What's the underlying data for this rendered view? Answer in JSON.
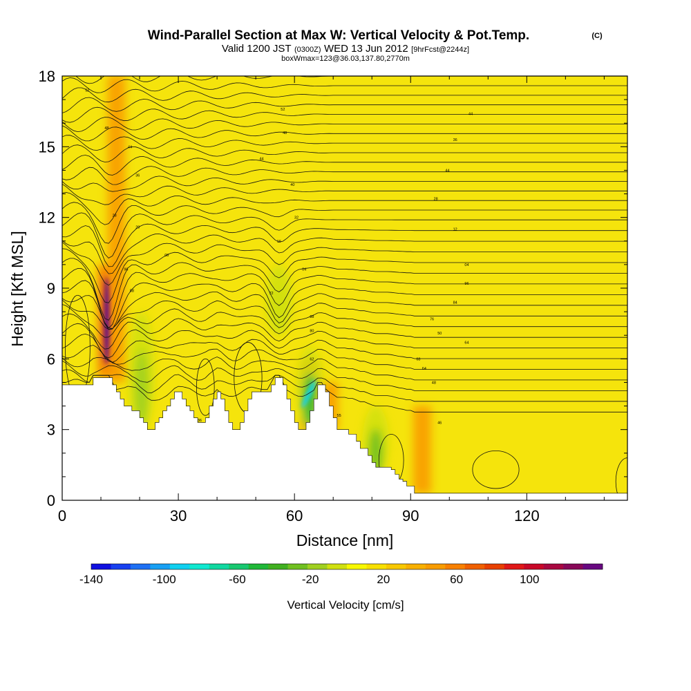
{
  "chart_data": {
    "type": "heatmap",
    "title": "Wind-Parallel Section at Max W: Vertical Velocity & Pot.Temp.",
    "title_mark": "(C)",
    "subtitle_main": "Valid 1200 JST",
    "subtitle_utc": "(0300Z)",
    "subtitle_date": "WED 13 Jun 2012",
    "subtitle_fcst": "[9hrFcst@2244z]",
    "subtitle2": "boxWmax=123@36.03,137.80,2770m",
    "xlabel": "Distance [nm]",
    "ylabel": "Height [Kft MSL]",
    "xlim": [
      0,
      146
    ],
    "ylim": [
      0,
      18
    ],
    "x_ticks": [
      "0",
      "30",
      "60",
      "90",
      "120"
    ],
    "x_tick_values": [
      0,
      30,
      60,
      90,
      120
    ],
    "y_ticks": [
      "0",
      "3",
      "6",
      "9",
      "12",
      "15",
      "18"
    ],
    "y_tick_values": [
      0,
      3,
      6,
      9,
      12,
      15,
      18
    ],
    "colorbar": {
      "label": "Vertical Velocity [cm/s]",
      "min": -140,
      "max": 140,
      "step": 10,
      "tick_labels": [
        "-140",
        "-100",
        "-60",
        "-20",
        "20",
        "60",
        "100"
      ],
      "tick_values": [
        -140,
        -100,
        -60,
        -20,
        20,
        60,
        100
      ],
      "colors": [
        "#1010e0",
        "#1840f0",
        "#1e70f4",
        "#18a0f4",
        "#10d0f0",
        "#10e8d0",
        "#10d8a0",
        "#18c870",
        "#20b838",
        "#40b020",
        "#70c020",
        "#a0d020",
        "#d0e010",
        "#f8f800",
        "#f8e000",
        "#f8c800",
        "#f8b000",
        "#f89c00",
        "#f88000",
        "#f06000",
        "#e84000",
        "#e01818",
        "#c80828",
        "#a80840",
        "#880858",
        "#680880"
      ]
    },
    "terrain": {
      "distance_nm": [
        0,
        7,
        8,
        12,
        13,
        14,
        15,
        16,
        17,
        18,
        19,
        20,
        21,
        22,
        23,
        24,
        25,
        26,
        27,
        28,
        29,
        30,
        31,
        32,
        33,
        34,
        35,
        36,
        37,
        38,
        39,
        40,
        41,
        42,
        43,
        44,
        45,
        46,
        47,
        48,
        49,
        50,
        51,
        52,
        53,
        54,
        55,
        56,
        57,
        58,
        59,
        60,
        61,
        62,
        63,
        64,
        65,
        66,
        67,
        68,
        69,
        70,
        71,
        72,
        73,
        74,
        75,
        76,
        77,
        78,
        79,
        80,
        81,
        82,
        83,
        84,
        85,
        86,
        87,
        88,
        89,
        90,
        91,
        92,
        93,
        146
      ],
      "height_kft": [
        4.9,
        4.9,
        5.2,
        5.2,
        4.9,
        4.6,
        4.3,
        4.0,
        4.0,
        3.8,
        3.8,
        3.5,
        3.3,
        3.0,
        3.0,
        3.3,
        3.5,
        3.8,
        4.0,
        4.3,
        4.6,
        4.6,
        4.3,
        4.0,
        3.8,
        3.5,
        3.3,
        3.3,
        3.5,
        4.0,
        4.3,
        4.6,
        4.3,
        3.8,
        3.3,
        3.0,
        3.0,
        3.3,
        3.8,
        4.3,
        4.6,
        4.6,
        4.6,
        4.6,
        4.6,
        4.9,
        5.2,
        5.2,
        4.9,
        4.3,
        3.8,
        3.3,
        3.0,
        3.0,
        3.3,
        3.8,
        4.3,
        4.9,
        4.9,
        4.6,
        4.0,
        3.5,
        3.0,
        3.0,
        3.0,
        2.8,
        2.8,
        2.5,
        2.2,
        2.2,
        1.9,
        1.6,
        1.4,
        1.4,
        1.4,
        1.4,
        1.3,
        1.1,
        0.9,
        0.8,
        0.6,
        0.6,
        0.3,
        0.3,
        0.3,
        0.3
      ]
    },
    "updrafts": [
      {
        "x": 11.5,
        "y_min": 5.2,
        "y_max": 10.0,
        "w_max": 123
      },
      {
        "x": 14.0,
        "y_min": 5.0,
        "y_max": 18.0,
        "w_max": 30
      },
      {
        "x": 64.0,
        "y_min": 3.0,
        "y_max": 6.0,
        "w_max": 45
      },
      {
        "x": 69.0,
        "y_min": 3.0,
        "y_max": 5.0,
        "w_max": 35
      },
      {
        "x": 93.0,
        "y_min": 0.3,
        "y_max": 4.0,
        "w_max": 30
      }
    ],
    "downdrafts": [
      {
        "x": 64.0,
        "y_min": 3.0,
        "y_max": 6.5,
        "w_min": -95
      },
      {
        "x": 81.0,
        "y_min": 1.0,
        "y_max": 4.0,
        "w_min": -55
      },
      {
        "x": 56.0,
        "y_min": 7.0,
        "y_max": 10.0,
        "w_min": -30
      },
      {
        "x": 20.5,
        "y_min": 3.0,
        "y_max": 8.0,
        "w_min": -35
      }
    ],
    "theta_contour_labels": [
      {
        "text": "52",
        "x": 6.5,
        "y": 17.4
      },
      {
        "text": "48",
        "x": 11.5,
        "y": 15.8
      },
      {
        "text": "44",
        "x": 17.5,
        "y": 15.0
      },
      {
        "text": "36",
        "x": 19.5,
        "y": 13.8
      },
      {
        "text": "28",
        "x": 13.5,
        "y": 12.1
      },
      {
        "text": "20",
        "x": 19.5,
        "y": 11.6
      },
      {
        "text": "08",
        "x": 27.0,
        "y": 10.4
      },
      {
        "text": "96",
        "x": 16.5,
        "y": 9.8
      },
      {
        "text": "88",
        "x": 18.0,
        "y": 8.9
      },
      {
        "text": "52",
        "x": 57.0,
        "y": 16.6
      },
      {
        "text": "48",
        "x": 57.5,
        "y": 15.6
      },
      {
        "text": "44",
        "x": 51.5,
        "y": 14.5
      },
      {
        "text": "40",
        "x": 59.5,
        "y": 13.4
      },
      {
        "text": "32",
        "x": 60.5,
        "y": 12.0
      },
      {
        "text": "16",
        "x": 56.0,
        "y": 11.0
      },
      {
        "text": "04",
        "x": 62.5,
        "y": 9.8
      },
      {
        "text": "72",
        "x": 54.0,
        "y": 8.8
      },
      {
        "text": "88",
        "x": 64.5,
        "y": 7.8
      },
      {
        "text": "80",
        "x": 64.5,
        "y": 7.2
      },
      {
        "text": "62",
        "x": 64.5,
        "y": 6.0
      },
      {
        "text": "55",
        "x": 71.5,
        "y": 3.6
      },
      {
        "text": "36",
        "x": 35.5,
        "y": 3.4
      },
      {
        "text": "44",
        "x": 105.5,
        "y": 16.4
      },
      {
        "text": "36",
        "x": 101.5,
        "y": 15.3
      },
      {
        "text": "44",
        "x": 99.5,
        "y": 14.0
      },
      {
        "text": "28",
        "x": 96.5,
        "y": 12.8
      },
      {
        "text": "12",
        "x": 101.5,
        "y": 11.5
      },
      {
        "text": "04",
        "x": 104.5,
        "y": 10.0
      },
      {
        "text": "96",
        "x": 104.5,
        "y": 9.2
      },
      {
        "text": "84",
        "x": 101.5,
        "y": 8.4
      },
      {
        "text": "76",
        "x": 95.5,
        "y": 7.7
      },
      {
        "text": "50",
        "x": 97.5,
        "y": 7.1
      },
      {
        "text": "64",
        "x": 104.5,
        "y": 6.7
      },
      {
        "text": "68",
        "x": 92.0,
        "y": 6.0
      },
      {
        "text": "64",
        "x": 93.5,
        "y": 5.6
      },
      {
        "text": "48",
        "x": 96.0,
        "y": 5.0
      },
      {
        "text": "46",
        "x": 97.5,
        "y": 3.3
      }
    ]
  }
}
